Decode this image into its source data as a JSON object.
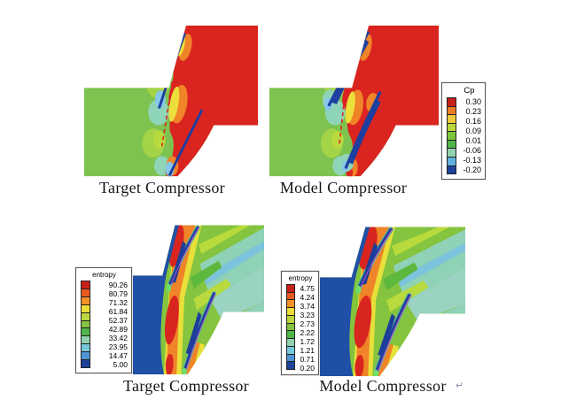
{
  "page": {
    "background_color": "#ffffff"
  },
  "figure": {
    "panels": [
      {
        "caption": "Target Compressor",
        "variable": "Cp"
      },
      {
        "caption": "Model Compressor",
        "variable": "Cp"
      },
      {
        "caption": "Target Compressor",
        "variable": "entropy"
      },
      {
        "caption": "Model Compressor",
        "variable": "entropy"
      }
    ],
    "trailing_mark": "↵"
  },
  "legends": {
    "cp": {
      "title": "Cp",
      "labels": [
        "0.30",
        "0.23",
        "0.16",
        "0.09",
        "0.01",
        "-0.06",
        "-0.13",
        "-0.20"
      ],
      "colors": [
        "#c8201a",
        "#ee7a24",
        "#efc93a",
        "#bcd63e",
        "#7cc43e",
        "#4fb54a",
        "#92d1ae",
        "#5fb0e0",
        "#1e419c"
      ]
    },
    "entropy_target": {
      "title": "entropy",
      "labels": [
        "90.26",
        "80.79",
        "71.32",
        "61.84",
        "52.37",
        "42.89",
        "33.42",
        "23.95",
        "14.47",
        "5.00"
      ],
      "colors": [
        "#c8201a",
        "#e85a1e",
        "#f49026",
        "#eedd38",
        "#bcd63e",
        "#84c43e",
        "#4fb54a",
        "#92d1ae",
        "#76c8da",
        "#4f94d4",
        "#1e419c"
      ]
    },
    "entropy_model": {
      "title": "entropy",
      "labels": [
        "4.75",
        "4.24",
        "3.74",
        "3.23",
        "2.73",
        "2.22",
        "1.72",
        "1.21",
        "0.71",
        "0.20"
      ],
      "colors": [
        "#c8201a",
        "#e85a1e",
        "#f49026",
        "#eedd38",
        "#bcd63e",
        "#84c43e",
        "#4fb54a",
        "#92d1ae",
        "#76c8da",
        "#4f94d4",
        "#1e419c"
      ]
    }
  },
  "palette": {
    "cp_inlet_green": "#7ec24f",
    "cp_outlet_red": "#da2420",
    "entropy_inlet_blue": "#2050a5",
    "blade_navy": "#1d3f9f",
    "high_entropy_red": "#d8251f",
    "wake_teal": "#8fd2b8",
    "dashed_line_red": "#e02020"
  },
  "chart_data": [
    {
      "type": "heatmap",
      "subtype": "cfd-contour",
      "title": "Target Compressor",
      "variable": "Cp",
      "legend_title": "Cp",
      "levels": [
        0.3,
        0.23,
        0.16,
        0.09,
        0.01,
        -0.06,
        -0.13,
        -0.2
      ],
      "palette": "rainbow (red high to dark-blue low)",
      "legend_position": "shared, right of Model Compressor panel",
      "description": "Blade-to-blade pressure-coefficient contours: uniform green inlet (Cp ≈ 0.01–0.09) on the left, uniform red outlet (Cp ≈ 0.30) downstream of the rotor row, two thin navy blade profiles, small teal/light-blue low-pressure blobs at leading edges, orange/yellow transition bands in the blade passage, red dashed periodic line between blades."
    },
    {
      "type": "heatmap",
      "subtype": "cfd-contour",
      "title": "Model Compressor",
      "variable": "Cp",
      "legend_title": "Cp",
      "levels": [
        0.3,
        0.23,
        0.16,
        0.09,
        0.01,
        -0.06,
        -0.13,
        -0.2
      ],
      "palette": "rainbow (red high to dark-blue low)",
      "legend_position": "right",
      "description": "Same field as Target Compressor with nearly identical distribution: green inlet, red outlet, thicker navy separation wedges along blade suction sides, teal/light-blue leading-edge blobs, orange/yellow passage bands, red dashed line between blades."
    },
    {
      "type": "heatmap",
      "subtype": "cfd-contour",
      "title": "Target Compressor",
      "variable": "entropy",
      "legend_title": "entropy",
      "levels": [
        90.26,
        80.79,
        71.32,
        61.84,
        52.37,
        42.89,
        33.42,
        23.95,
        14.47,
        5.0
      ],
      "palette": "rainbow (red high to dark-blue low)",
      "legend_position": "left",
      "description": "Entropy contours: dark-blue low-entropy inlet (≈5), intense red/orange high-entropy bands (≈80–90) along blade pressure sides and wakes, green mid-level downstream region with teal/cyan wake streaks (≈24–33) slanting toward upper right."
    },
    {
      "type": "heatmap",
      "subtype": "cfd-contour",
      "title": "Model Compressor",
      "variable": "entropy",
      "legend_title": "entropy",
      "levels": [
        4.75,
        4.24,
        3.74,
        3.23,
        2.73,
        2.22,
        1.72,
        1.21,
        0.71,
        0.2
      ],
      "palette": "rainbow (red high to dark-blue low)",
      "legend_position": "left",
      "description": "Entropy contours of the scaled model: dark-blue inlet (≈0.2), red/orange high-entropy blade wakes (≈4.2–4.75), green downstream field with teal/cyan wake streaks, matching the Target Compressor pattern."
    }
  ]
}
